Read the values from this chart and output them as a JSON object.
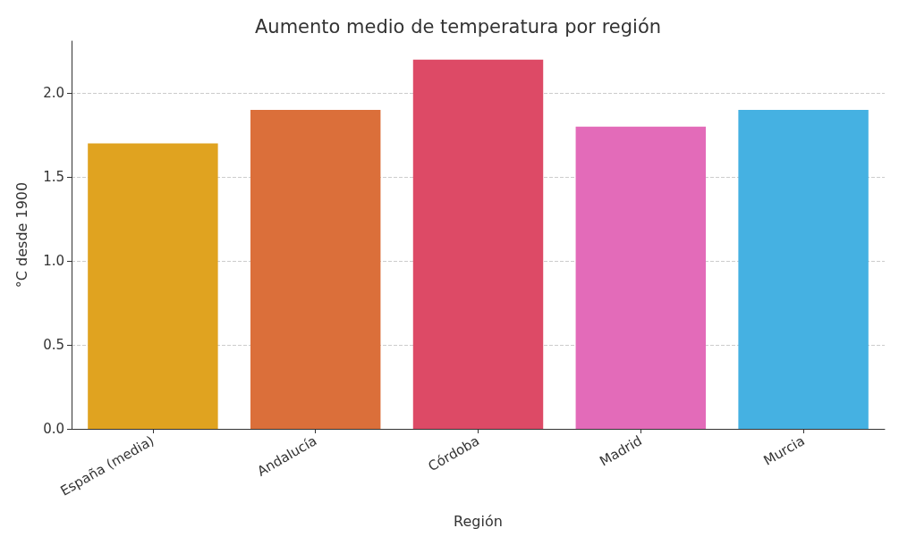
{
  "chart_data": {
    "type": "bar",
    "title": "Aumento medio de temperatura por región",
    "xlabel": "Región",
    "ylabel": "°C desde 1900",
    "categories": [
      "España (media)",
      "Andalucía",
      "Córdoba",
      "Madrid",
      "Murcia"
    ],
    "values": [
      1.7,
      1.9,
      2.2,
      1.8,
      1.9
    ],
    "colors": [
      "#e0a320",
      "#db6f3a",
      "#dd4a66",
      "#e36bb9",
      "#45b1e2"
    ],
    "ylim": [
      0,
      2.31
    ],
    "yticks": [
      {
        "value": 0,
        "label": "0.0"
      },
      {
        "value": 0.5,
        "label": "0.5"
      },
      {
        "value": 1,
        "label": "1.0"
      },
      1.5,
      {
        "value": 2,
        "label": "2.0"
      }
    ],
    "grid": "y"
  }
}
